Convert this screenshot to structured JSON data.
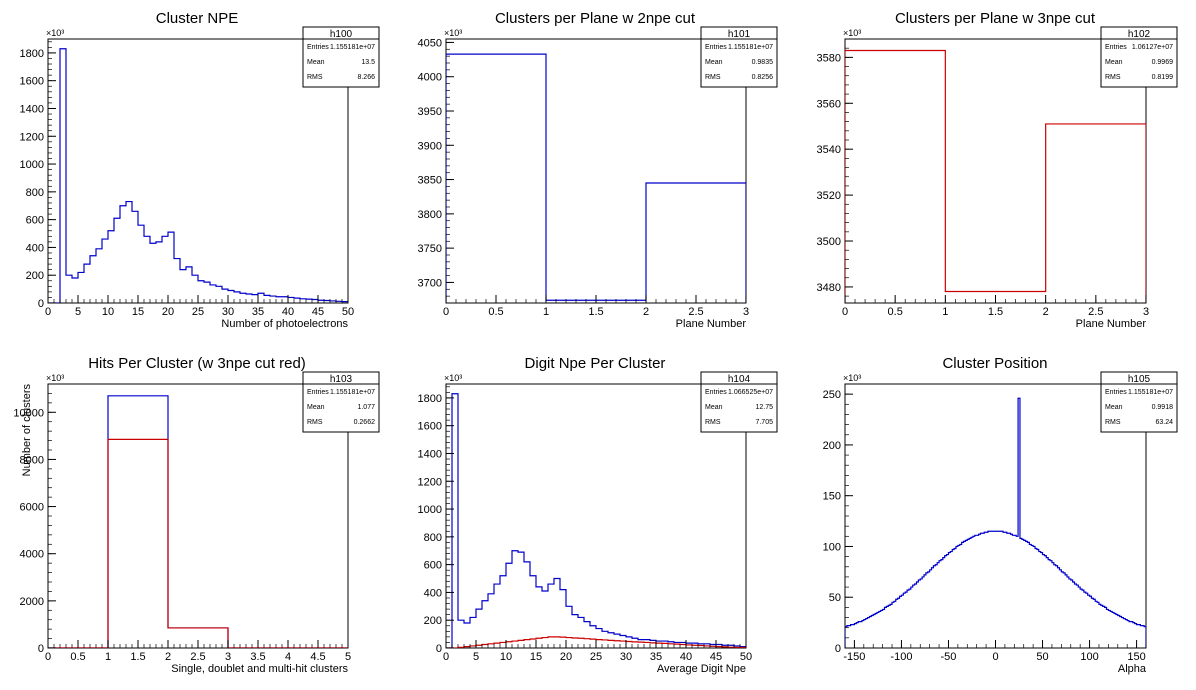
{
  "chart_data": [
    {
      "type": "histogram",
      "title": "Cluster NPE",
      "xlabel": "Number of photoelectrons",
      "ylabel": "",
      "y_multiplier": "×10³",
      "xlim": [
        0,
        50
      ],
      "ylim": [
        0,
        1900
      ],
      "xticks": [
        0,
        5,
        10,
        15,
        20,
        25,
        30,
        35,
        40,
        45,
        50
      ],
      "yticks": [
        0,
        200,
        400,
        600,
        800,
        1000,
        1200,
        1400,
        1600,
        1800
      ],
      "stats": {
        "name": "h100",
        "entries_label": "Entries",
        "entries": "1.155181e+07",
        "mean_label": "Mean",
        "mean": "13.5",
        "rms_label": "RMS",
        "rms": "8.266"
      },
      "bin_width": 1,
      "series": [
        {
          "color": "#0000cc",
          "x_start": 0,
          "values": [
            0,
            0,
            1830,
            200,
            180,
            220,
            280,
            340,
            390,
            460,
            520,
            610,
            700,
            730,
            660,
            560,
            480,
            430,
            440,
            480,
            510,
            320,
            240,
            260,
            200,
            160,
            150,
            130,
            120,
            100,
            90,
            80,
            70,
            65,
            60,
            70,
            55,
            50,
            45,
            45,
            40,
            35,
            30,
            28,
            25,
            20,
            18,
            15,
            12,
            10
          ]
        }
      ]
    },
    {
      "type": "histogram",
      "title": "Clusters per Plane w 2npe cut",
      "xlabel": "Plane Number",
      "ylabel": "",
      "y_multiplier": "×10³",
      "xlim": [
        0,
        3
      ],
      "ylim": [
        3670,
        4055
      ],
      "xticks": [
        0,
        0.5,
        1,
        1.5,
        2,
        2.5,
        3
      ],
      "yticks": [
        3700,
        3750,
        3800,
        3850,
        3900,
        3950,
        4000,
        4050
      ],
      "stats": {
        "name": "h101",
        "entries_label": "Entries",
        "entries": "1.155181e+07",
        "mean_label": "Mean",
        "mean": "0.9835",
        "rms_label": "RMS",
        "rms": "0.8256"
      },
      "bin_width": 1,
      "series": [
        {
          "color": "#0000cc",
          "x_start": 0,
          "values": [
            4033,
            3674,
            3845
          ]
        }
      ]
    },
    {
      "type": "histogram",
      "title": "Clusters per Plane w 3npe cut",
      "xlabel": "Plane Number",
      "ylabel": "",
      "y_multiplier": "×10³",
      "xlim": [
        0,
        3
      ],
      "ylim": [
        3473,
        3588
      ],
      "xticks": [
        0,
        0.5,
        1,
        1.5,
        2,
        2.5,
        3
      ],
      "yticks": [
        3480,
        3500,
        3520,
        3540,
        3560,
        3580
      ],
      "stats": {
        "name": "h102",
        "entries_label": "Entries",
        "entries": "1.06127e+07",
        "mean_label": "Mean",
        "mean": "0.9969",
        "rms_label": "RMS",
        "rms": "0.8199"
      },
      "bin_width": 1,
      "series": [
        {
          "color": "#cc0000",
          "x_start": 0,
          "values": [
            3583,
            3478,
            3551
          ]
        }
      ]
    },
    {
      "type": "histogram",
      "title": "Hits Per Cluster (w 3npe cut red)",
      "xlabel": "Single, doublet and multi-hit clusters",
      "ylabel": "Number of clusters",
      "y_multiplier": "×10³",
      "xlim": [
        0,
        5
      ],
      "ylim": [
        0,
        11200
      ],
      "xticks": [
        0,
        0.5,
        1,
        1.5,
        2,
        2.5,
        3,
        3.5,
        4,
        4.5,
        5
      ],
      "yticks": [
        0,
        2000,
        4000,
        6000,
        8000,
        10000
      ],
      "stats": {
        "name": "h103",
        "entries_label": "Entries",
        "entries": "1.155181e+07",
        "mean_label": "Mean",
        "mean": "1.077",
        "rms_label": "RMS",
        "rms": "0.2662"
      },
      "bin_width": 1,
      "series": [
        {
          "color": "#0000cc",
          "x_start": 0,
          "values": [
            0,
            10700,
            850,
            0,
            0
          ]
        },
        {
          "color": "#cc0000",
          "x_start": 0,
          "values": [
            0,
            8850,
            850,
            0,
            0
          ]
        }
      ]
    },
    {
      "type": "histogram",
      "title": "Digit Npe Per Cluster",
      "xlabel": "Average Digit Npe",
      "ylabel": "",
      "y_multiplier": "×10³",
      "xlim": [
        0,
        50
      ],
      "ylim": [
        0,
        1900
      ],
      "xticks": [
        0,
        5,
        10,
        15,
        20,
        25,
        30,
        35,
        40,
        45,
        50
      ],
      "yticks": [
        0,
        200,
        400,
        600,
        800,
        1000,
        1200,
        1400,
        1600,
        1800
      ],
      "stats": {
        "name": "h104",
        "entries_label": "Entries",
        "entries": "1.066525e+07",
        "mean_label": "Mean",
        "mean": "12.75",
        "rms_label": "RMS",
        "rms": "7.705"
      },
      "bin_width": 1,
      "series": [
        {
          "color": "#0000cc",
          "x_start": 0,
          "values": [
            0,
            1830,
            200,
            180,
            220,
            280,
            340,
            390,
            460,
            520,
            610,
            700,
            690,
            620,
            520,
            440,
            410,
            460,
            500,
            420,
            300,
            240,
            220,
            190,
            160,
            140,
            120,
            110,
            100,
            90,
            80,
            70,
            60,
            60,
            55,
            50,
            50,
            45,
            40,
            40,
            35,
            35,
            30,
            30,
            25,
            25,
            20,
            20,
            15,
            10
          ]
        },
        {
          "color": "#cc0000",
          "x_start": 0,
          "values": [
            0,
            0,
            5,
            10,
            15,
            20,
            25,
            30,
            35,
            40,
            45,
            50,
            55,
            60,
            65,
            70,
            75,
            80,
            80,
            78,
            75,
            72,
            70,
            67,
            64,
            60,
            58,
            55,
            52,
            50,
            47,
            44,
            42,
            40,
            37,
            35,
            33,
            30,
            28,
            25,
            22,
            20,
            18,
            15,
            12,
            10,
            8,
            6,
            5,
            4
          ]
        }
      ]
    },
    {
      "type": "histogram",
      "title": "Cluster Position",
      "xlabel": "Alpha",
      "ylabel": "",
      "y_multiplier": "×10³",
      "xlim": [
        -160,
        160
      ],
      "ylim": [
        0,
        260
      ],
      "xticks": [
        -150,
        -100,
        -50,
        0,
        50,
        100,
        150
      ],
      "yticks": [
        0,
        50,
        100,
        150,
        200,
        250
      ],
      "stats": {
        "name": "h105",
        "entries_label": "Entries",
        "entries": "1.155181e+07",
        "mean_label": "Mean",
        "mean": "0.9918",
        "rms_label": "RMS",
        "rms": "63.24"
      },
      "bin_width": 2,
      "spike": {
        "x": 24,
        "value": 246
      },
      "envelope": {
        "peak": 115,
        "sigma": 72,
        "floor": 12,
        "center": 0
      },
      "series": [
        {
          "color": "#0000cc",
          "x_start": -160,
          "values": []
        }
      ]
    }
  ]
}
